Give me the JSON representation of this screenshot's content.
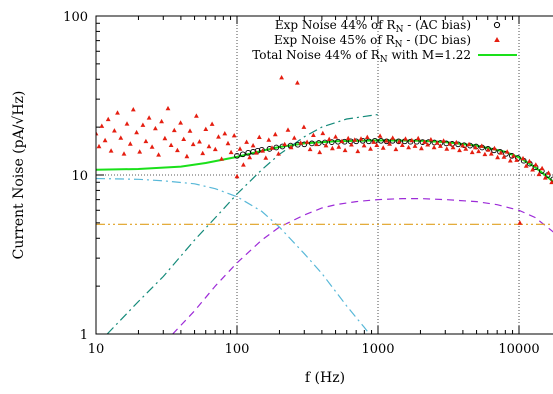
{
  "chart_data": {
    "type": "scatter",
    "x_scale": "log",
    "y_scale": "log",
    "xlim": [
      10,
      18000
    ],
    "ylim": [
      1,
      100
    ],
    "xlabel": "f (Hz)",
    "ylabel": "Current Noise (pA/√Hz)",
    "x_ticks": [
      {
        "value": 10,
        "label": "10"
      },
      {
        "value": 100,
        "label": "100"
      },
      {
        "value": 1000,
        "label": "1000"
      },
      {
        "value": 10000,
        "label": "10000"
      }
    ],
    "y_ticks": [
      {
        "value": 1,
        "label": "1"
      },
      {
        "value": 10,
        "label": "10"
      },
      {
        "value": 100,
        "label": "100"
      }
    ],
    "gridlines": {
      "x": [
        100,
        1000,
        10000
      ],
      "y": [
        10
      ]
    },
    "legend": {
      "position": "top-right",
      "entries": [
        {
          "pre": "Exp Noise 44% of R",
          "sub": "N",
          "post": " - (AC bias)",
          "marker": "circle",
          "color": "#000000"
        },
        {
          "pre": "Exp Noise 45% of R",
          "sub": "N",
          "post": " - (DC bias)",
          "marker": "triangle",
          "color": "#e51e10"
        },
        {
          "pre": "Total Noise 44% of R",
          "sub": "N",
          "post": " with M=1.22",
          "marker": "line",
          "color": "#1ae01a"
        }
      ]
    },
    "series": [
      {
        "marker": "circle",
        "color": "#000000",
        "points": [
          [
            100,
            13.2
          ],
          [
            110,
            13.5
          ],
          [
            120,
            13.8
          ],
          [
            130,
            14.0
          ],
          [
            140,
            14.2
          ],
          [
            150,
            14.4
          ],
          [
            170,
            14.6
          ],
          [
            190,
            14.9
          ],
          [
            210,
            15.1
          ],
          [
            240,
            15.3
          ],
          [
            270,
            15.5
          ],
          [
            300,
            15.6
          ],
          [
            340,
            15.8
          ],
          [
            380,
            15.9
          ],
          [
            420,
            16.0
          ],
          [
            470,
            16.1
          ],
          [
            520,
            16.2
          ],
          [
            580,
            16.2
          ],
          [
            640,
            16.3
          ],
          [
            700,
            16.3
          ],
          [
            780,
            16.4
          ],
          [
            860,
            16.3
          ],
          [
            950,
            16.4
          ],
          [
            1050,
            16.4
          ],
          [
            1150,
            16.3
          ],
          [
            1270,
            16.4
          ],
          [
            1400,
            16.3
          ],
          [
            1550,
            16.3
          ],
          [
            1700,
            16.2
          ],
          [
            1880,
            16.2
          ],
          [
            2070,
            16.1
          ],
          [
            2280,
            16.1
          ],
          [
            2510,
            16.0
          ],
          [
            2770,
            15.9
          ],
          [
            3050,
            15.8
          ],
          [
            3360,
            15.7
          ],
          [
            3700,
            15.6
          ],
          [
            4080,
            15.4
          ],
          [
            4500,
            15.3
          ],
          [
            4960,
            15.1
          ],
          [
            5470,
            14.9
          ],
          [
            6030,
            14.6
          ],
          [
            6650,
            14.3
          ],
          [
            7330,
            14.0
          ],
          [
            8080,
            13.6
          ],
          [
            8910,
            13.2
          ],
          [
            9820,
            12.8
          ],
          [
            10800,
            12.3
          ],
          [
            11900,
            11.8
          ],
          [
            13100,
            11.2
          ],
          [
            14500,
            10.6
          ],
          [
            16000,
            10.0
          ],
          [
            17500,
            9.4
          ]
        ]
      },
      {
        "marker": "triangle",
        "color": "#e51e10",
        "points": [
          [
            10,
            18.2
          ],
          [
            10.5,
            15.1
          ],
          [
            11,
            20.3
          ],
          [
            11.6,
            16.5
          ],
          [
            12.2,
            22.4
          ],
          [
            12.8,
            14.2
          ],
          [
            13.5,
            19.0
          ],
          [
            14.2,
            24.6
          ],
          [
            15,
            17.1
          ],
          [
            15.8,
            13.6
          ],
          [
            16.6,
            21.0
          ],
          [
            17.5,
            15.7
          ],
          [
            18.4,
            25.8
          ],
          [
            19.4,
            18.5
          ],
          [
            20.4,
            14.0
          ],
          [
            21.5,
            20.6
          ],
          [
            22.6,
            16.3
          ],
          [
            23.8,
            22.9
          ],
          [
            25,
            15.0
          ],
          [
            26.4,
            19.6
          ],
          [
            27.8,
            13.4
          ],
          [
            29.2,
            21.7
          ],
          [
            30.8,
            17.0
          ],
          [
            32.4,
            26.2
          ],
          [
            34.1,
            15.4
          ],
          [
            35.9,
            19.1
          ],
          [
            37.8,
            14.3
          ],
          [
            39.8,
            21.3
          ],
          [
            41.9,
            16.8
          ],
          [
            44.1,
            13.1
          ],
          [
            46.4,
            18.9
          ],
          [
            48.9,
            15.6
          ],
          [
            51.5,
            23.5
          ],
          [
            54.2,
            16.2
          ],
          [
            57.1,
            13.7
          ],
          [
            60.1,
            19.4
          ],
          [
            63.3,
            15.1
          ],
          [
            66.6,
            20.9
          ],
          [
            70.2,
            14.5
          ],
          [
            73.9,
            17.4
          ],
          [
            77.8,
            12.6
          ],
          [
            81.9,
            18.2
          ],
          [
            86.3,
            15.8
          ],
          [
            90.8,
            13.9
          ],
          [
            95.6,
            17.7
          ],
          [
            100,
            9.8
          ],
          [
            105,
            14.6
          ],
          [
            111,
            11.6
          ],
          [
            117,
            16.1
          ],
          [
            123,
            12.9
          ],
          [
            130,
            15.3
          ],
          [
            137,
            13.8
          ],
          [
            144,
            17.3
          ],
          [
            152,
            14.2
          ],
          [
            160,
            12.8
          ],
          [
            168,
            16.6
          ],
          [
            177,
            14.8
          ],
          [
            187,
            18.0
          ],
          [
            197,
            13.6
          ],
          [
            207,
            41.0
          ],
          [
            218,
            15.6
          ],
          [
            230,
            19.2
          ],
          [
            242,
            14.9
          ],
          [
            255,
            17.1
          ],
          [
            268,
            38.0
          ],
          [
            283,
            15.9
          ],
          [
            298,
            20.0
          ],
          [
            314,
            16.1
          ],
          [
            330,
            14.5
          ],
          [
            348,
            17.8
          ],
          [
            366,
            15.6
          ],
          [
            386,
            13.9
          ],
          [
            406,
            18.3
          ],
          [
            428,
            15.3
          ],
          [
            451,
            16.8
          ],
          [
            475,
            14.7
          ],
          [
            500,
            17.4
          ],
          [
            527,
            15.0
          ],
          [
            555,
            16.3
          ],
          [
            584,
            14.3
          ],
          [
            615,
            17.0
          ],
          [
            648,
            15.5
          ],
          [
            683,
            16.6
          ],
          [
            719,
            14.1
          ],
          [
            757,
            16.9
          ],
          [
            797,
            15.3
          ],
          [
            840,
            17.3
          ],
          [
            885,
            14.6
          ],
          [
            932,
            16.1
          ],
          [
            981,
            15.4
          ],
          [
            1034,
            17.6
          ],
          [
            1089,
            14.8
          ],
          [
            1147,
            16.4
          ],
          [
            1208,
            15.7
          ],
          [
            1272,
            17.1
          ],
          [
            1340,
            14.5
          ],
          [
            1411,
            16.2
          ],
          [
            1486,
            15.4
          ],
          [
            1566,
            16.9
          ],
          [
            1649,
            14.9
          ],
          [
            1737,
            16.5
          ],
          [
            1829,
            15.2
          ],
          [
            1927,
            17.0
          ],
          [
            2030,
            14.7
          ],
          [
            2138,
            16.1
          ],
          [
            2252,
            15.5
          ],
          [
            2371,
            16.7
          ],
          [
            2498,
            14.9
          ],
          [
            2631,
            15.9
          ],
          [
            2771,
            15.2
          ],
          [
            2918,
            16.4
          ],
          [
            3074,
            14.6
          ],
          [
            3238,
            15.7
          ],
          [
            3410,
            14.9
          ],
          [
            3592,
            16.0
          ],
          [
            3783,
            14.3
          ],
          [
            3985,
            15.3
          ],
          [
            4197,
            14.6
          ],
          [
            4421,
            15.6
          ],
          [
            4656,
            13.9
          ],
          [
            4904,
            14.9
          ],
          [
            5166,
            14.1
          ],
          [
            5441,
            15.2
          ],
          [
            5731,
            13.5
          ],
          [
            6036,
            14.4
          ],
          [
            6358,
            13.6
          ],
          [
            6697,
            14.7
          ],
          [
            7053,
            12.9
          ],
          [
            7429,
            13.8
          ],
          [
            7825,
            13.0
          ],
          [
            8242,
            14.0
          ],
          [
            8681,
            12.3
          ],
          [
            9144,
            13.2
          ],
          [
            9631,
            12.4
          ],
          [
            10140,
            5.0
          ],
          [
            10680,
            12.7
          ],
          [
            11250,
            11.4
          ],
          [
            11850,
            12.2
          ],
          [
            12480,
            10.8
          ],
          [
            13150,
            11.6
          ],
          [
            13850,
            10.1
          ],
          [
            14590,
            11.0
          ],
          [
            15370,
            9.6
          ],
          [
            16190,
            10.3
          ],
          [
            17050,
            9.0
          ]
        ]
      },
      {
        "name": "",
        "color": "#1ae01a",
        "line_style": "solid",
        "x": [
          10,
          20,
          40,
          60,
          100,
          150,
          200,
          300,
          500,
          1000,
          2000,
          3000,
          5000,
          8000,
          10000,
          13000,
          18000
        ],
        "y": [
          10.8,
          10.9,
          11.3,
          11.9,
          13.0,
          14.2,
          15.0,
          15.8,
          16.3,
          16.5,
          16.4,
          16.1,
          15.3,
          14.0,
          12.9,
          11.2,
          8.9
        ]
      },
      {
        "name": "",
        "color": "#58b8d8",
        "line_style": "dash-dot",
        "x": [
          10,
          20,
          30,
          50,
          70,
          100,
          150,
          200,
          300,
          400,
          600,
          800,
          1000
        ],
        "y": [
          9.5,
          9.4,
          9.2,
          8.8,
          8.2,
          7.3,
          5.9,
          4.7,
          3.2,
          2.4,
          1.5,
          1.1,
          0.85
        ]
      },
      {
        "name": "",
        "color": "#148a7a",
        "line_style": "dash-dot",
        "x": [
          12,
          20,
          30,
          50,
          80,
          100,
          150,
          200,
          300,
          400,
          600,
          1000
        ],
        "y": [
          1.0,
          1.6,
          2.3,
          3.9,
          6.1,
          7.6,
          10.8,
          13.5,
          17.4,
          20.0,
          22.5,
          24.0
        ]
      },
      {
        "name": "",
        "color": "#9d2bd8",
        "line_style": "dash",
        "x": [
          35,
          50,
          70,
          100,
          150,
          200,
          300,
          400,
          500,
          700,
          1000,
          1500,
          2000,
          3000,
          5000,
          7000,
          10000,
          13000,
          18000
        ],
        "y": [
          1.0,
          1.4,
          2.0,
          2.8,
          3.9,
          4.7,
          5.6,
          6.2,
          6.5,
          6.8,
          7.0,
          7.1,
          7.1,
          7.0,
          6.8,
          6.5,
          6.0,
          5.4,
          4.3
        ]
      },
      {
        "name": "",
        "color": "#e0a020",
        "line_style": "dash-dot-dot",
        "x": [
          10,
          18000
        ],
        "y": [
          4.9,
          4.9
        ]
      }
    ]
  }
}
